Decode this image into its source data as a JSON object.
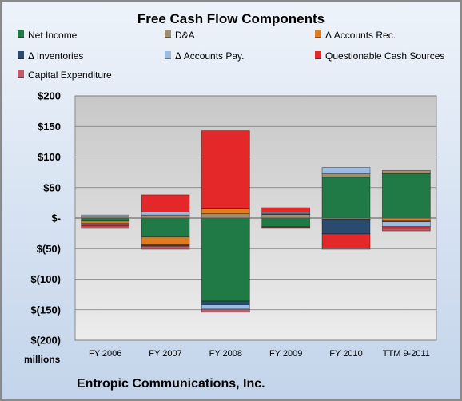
{
  "chart_data": {
    "type": "bar",
    "stacked": true,
    "title": "Free Cash Flow Components",
    "units_label": "millions",
    "company": "Entropic Communications, Inc.",
    "categories": [
      "FY 2006",
      "FY 2007",
      "FY 2008",
      "FY 2009",
      "FY 2010",
      "TTM 9-2011"
    ],
    "y_ticks": [
      "$(200)",
      "$(150)",
      "$(100)",
      "$(50)",
      "$-",
      "$50",
      "$100",
      "$150",
      "$200"
    ],
    "ylim": [
      -200,
      200
    ],
    "grid": true,
    "legend_position": "top",
    "series": [
      {
        "name": "Net Income",
        "color": "#1f7a45",
        "values": [
          -5,
          -31,
          -136,
          -14,
          67,
          73
        ]
      },
      {
        "name": "D&A",
        "color": "#9e8f6e",
        "values": [
          3,
          5,
          7,
          6,
          6,
          5
        ]
      },
      {
        "name": "Δ Accounts Rec.",
        "color": "#e07b1f",
        "values": [
          -4,
          -13,
          8,
          -1,
          -2,
          -5
        ]
      },
      {
        "name": "Δ Inventories",
        "color": "#2a4a6e",
        "values": [
          -1,
          -2,
          -6,
          1,
          -24,
          -1
        ]
      },
      {
        "name": "Δ Accounts Pay.",
        "color": "#9bbbe3",
        "values": [
          2,
          5,
          -7,
          2,
          10,
          -8
        ]
      },
      {
        "name": "Questionable Cash Sources",
        "color": "#e4282a",
        "values": [
          -3,
          28,
          128,
          8,
          -23,
          -3
        ]
      },
      {
        "name": "Capital Expenditure",
        "color": "#c05a66",
        "values": [
          -4,
          -5,
          -5,
          -2,
          -2,
          -4
        ]
      }
    ]
  }
}
